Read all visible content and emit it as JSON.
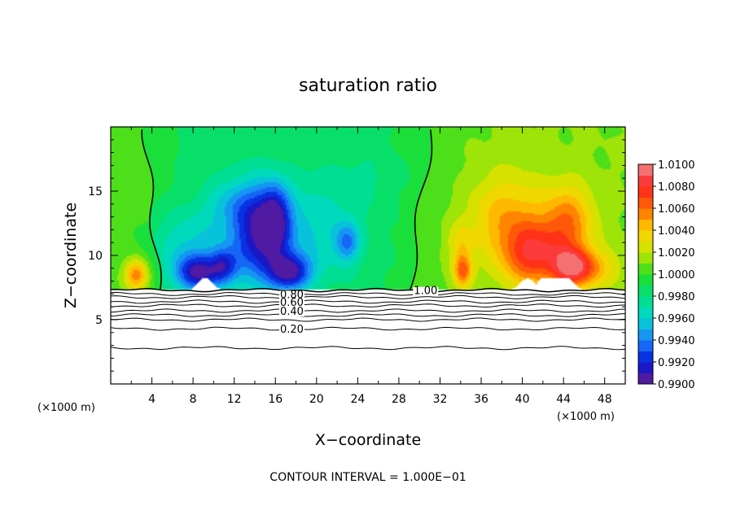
{
  "chart_data": {
    "type": "heatmap",
    "title": "saturation ratio",
    "xlabel": "X−coordinate",
    "ylabel": "Z−coordinate",
    "x_unit_label": "(×1000 m)",
    "x_unit_label_right": "(×1000 m)",
    "xlim": [
      0,
      50
    ],
    "ylim": [
      0,
      20
    ],
    "x_ticks": [
      4,
      8,
      12,
      16,
      20,
      24,
      28,
      32,
      36,
      40,
      44,
      48
    ],
    "x_tick_labels": [
      "4",
      "8",
      "12",
      "16",
      "20",
      "24",
      "28",
      "32",
      "36",
      "40",
      "44",
      "48"
    ],
    "y_ticks": [
      5,
      10,
      15
    ],
    "y_tick_labels": [
      "5",
      "10",
      "15"
    ],
    "surface_z": 7.3,
    "colorbar": {
      "min": 0.99,
      "max": 1.01,
      "tick_labels": [
        "1.0100",
        "1.0080",
        "1.0060",
        "1.0040",
        "1.0020",
        "1.0000",
        "0.9980",
        "0.9960",
        "0.9940",
        "0.9920",
        "0.9900"
      ],
      "colors": [
        "#f08c8c",
        "#ff2020",
        "#ff6a00",
        "#ffd200",
        "#c8e600",
        "#22dd22",
        "#00e080",
        "#00d8d0",
        "#1e80ff",
        "#0018d8",
        "#6a1a90"
      ]
    },
    "contour_labels": [
      {
        "text": "1.00",
        "x": 30.6,
        "z": 7.3
      },
      {
        "text": "0.80",
        "x": 17.6,
        "z": 7.0
      },
      {
        "text": "0.60",
        "x": 17.6,
        "z": 6.4
      },
      {
        "text": "0.40",
        "x": 17.6,
        "z": 5.7
      },
      {
        "text": "0.20",
        "x": 17.6,
        "z": 4.3
      }
    ],
    "contour_interval_text": "CONTOUR INTERVAL = 1.000E−01",
    "features": [
      {
        "x": 2.5,
        "z": 8.5,
        "sx": 1.2,
        "sz": 1.2,
        "v": 1.006
      },
      {
        "x": 7.5,
        "z": 10.5,
        "sx": 4.0,
        "sz": 3.2,
        "v": 0.996
      },
      {
        "x": 8.5,
        "z": 8.6,
        "sx": 2.2,
        "sz": 1.4,
        "v": 0.9925
      },
      {
        "x": 11.0,
        "z": 9.2,
        "sx": 1.3,
        "sz": 1.3,
        "v": 0.9945
      },
      {
        "x": 14.5,
        "z": 11.5,
        "sx": 2.8,
        "sz": 3.8,
        "v": 0.9915
      },
      {
        "x": 16.0,
        "z": 13.0,
        "sx": 1.4,
        "sz": 2.5,
        "v": 0.9945
      },
      {
        "x": 17.5,
        "z": 8.7,
        "sx": 2.0,
        "sz": 1.4,
        "v": 0.992
      },
      {
        "x": 12.0,
        "z": 14.0,
        "sx": 3.0,
        "sz": 2.0,
        "v": 0.9965
      },
      {
        "x": 20.0,
        "z": 12.0,
        "sx": 4.5,
        "sz": 4.0,
        "v": 0.9962
      },
      {
        "x": 23.0,
        "z": 11.0,
        "sx": 1.2,
        "sz": 1.5,
        "v": 0.995
      },
      {
        "x": 25.0,
        "z": 16.0,
        "sx": 3.0,
        "sz": 2.2,
        "v": 0.998
      },
      {
        "x": 10.0,
        "z": 17.5,
        "sx": 3.0,
        "sz": 2.0,
        "v": 0.9985
      },
      {
        "x": 34.2,
        "z": 8.8,
        "sx": 0.9,
        "sz": 1.3,
        "v": 1.0065
      },
      {
        "x": 34.0,
        "z": 11.0,
        "sx": 1.3,
        "sz": 1.5,
        "v": 1.003
      },
      {
        "x": 38.5,
        "z": 13.0,
        "sx": 3.8,
        "sz": 3.3,
        "v": 1.0045
      },
      {
        "x": 41.0,
        "z": 10.0,
        "sx": 3.0,
        "sz": 2.5,
        "v": 1.007
      },
      {
        "x": 44.5,
        "z": 12.5,
        "sx": 2.5,
        "sz": 3.0,
        "v": 1.0055
      },
      {
        "x": 45.0,
        "z": 9.0,
        "sx": 2.0,
        "sz": 1.5,
        "v": 1.0085
      },
      {
        "x": 48.0,
        "z": 9.0,
        "sx": 2.0,
        "sz": 1.6,
        "v": 1.003
      },
      {
        "x": 40.0,
        "z": 17.5,
        "sx": 4.0,
        "sz": 2.5,
        "v": 1.0012
      },
      {
        "x": 33.0,
        "z": 15.0,
        "sx": 2.5,
        "sz": 3.0,
        "v": 1.0006
      }
    ]
  }
}
